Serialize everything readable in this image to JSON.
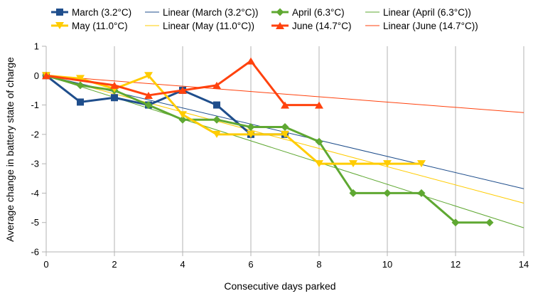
{
  "chart_data": {
    "type": "line",
    "title": "",
    "xlabel": "Consecutive days parked",
    "ylabel": "Average change in battery state of charge",
    "xlim": [
      0,
      14
    ],
    "ylim": [
      -6,
      1
    ],
    "x_ticks": [
      "0",
      "2",
      "4",
      "6",
      "8",
      "10",
      "12",
      "14"
    ],
    "y_ticks": [
      "1",
      "0",
      "-1",
      "-2",
      "-3",
      "-4",
      "-5",
      "-6"
    ],
    "grid": "vertical",
    "legend_position": "top",
    "series": [
      {
        "name": "March (3.2°C)",
        "color": "#1f4e8c",
        "marker": "square",
        "points": [
          [
            0,
            0
          ],
          [
            1,
            -0.9
          ],
          [
            2,
            -0.75
          ],
          [
            3,
            -1
          ],
          [
            4,
            -0.5
          ],
          [
            5,
            -1
          ],
          [
            6,
            -2
          ],
          [
            7,
            -2
          ]
        ]
      },
      {
        "name": "April (6.3°C)",
        "color": "#5fa832",
        "marker": "diamond",
        "points": [
          [
            0,
            0
          ],
          [
            1,
            -0.33
          ],
          [
            2,
            -0.5
          ],
          [
            3,
            -1
          ],
          [
            4,
            -1.5
          ],
          [
            5,
            -1.5
          ],
          [
            6,
            -1.75
          ],
          [
            7,
            -1.75
          ],
          [
            8,
            -2.25
          ],
          [
            9,
            -4
          ],
          [
            10,
            -4
          ],
          [
            11,
            -4
          ],
          [
            12,
            -5
          ],
          [
            13,
            -5
          ]
        ]
      },
      {
        "name": "May (11.0°C)",
        "color": "#ffcc00",
        "marker": "triangle-down",
        "points": [
          [
            0,
            0
          ],
          [
            1,
            -0.1
          ],
          [
            2,
            -0.45
          ],
          [
            3,
            0
          ],
          [
            4,
            -1.33
          ],
          [
            5,
            -2
          ],
          [
            6,
            -2
          ],
          [
            7,
            -2
          ],
          [
            8,
            -3
          ],
          [
            9,
            -3
          ],
          [
            10,
            -3
          ],
          [
            11,
            -3
          ]
        ]
      },
      {
        "name": "June (14.7°C)",
        "color": "#ff420e",
        "marker": "triangle-up",
        "points": [
          [
            0,
            0
          ],
          [
            2,
            -0.33
          ],
          [
            3,
            -0.67
          ],
          [
            4,
            -0.5
          ],
          [
            5,
            -0.33
          ],
          [
            6,
            0.5
          ],
          [
            7,
            -1
          ],
          [
            8,
            -1
          ]
        ]
      }
    ],
    "trendlines": [
      {
        "name": "Linear (March (3.2°C))",
        "color": "#1f4e8c",
        "slope": -0.275,
        "intercept": 0
      },
      {
        "name": "Linear (April (6.3°C))",
        "color": "#5fa832",
        "slope": -0.37,
        "intercept": 0
      },
      {
        "name": "Linear (May (11.0°C))",
        "color": "#ffcc00",
        "slope": -0.31,
        "intercept": 0
      },
      {
        "name": "Linear (June (14.7°C))",
        "color": "#ff420e",
        "slope": -0.09,
        "intercept": 0
      }
    ],
    "legend": [
      {
        "label": "March (3.2°C)",
        "kind": "series",
        "ref": 0
      },
      {
        "label": "Linear (March (3.2°C))",
        "kind": "trend",
        "ref": 0
      },
      {
        "label": "April (6.3°C)",
        "kind": "series",
        "ref": 1
      },
      {
        "label": "Linear (April (6.3°C))",
        "kind": "trend",
        "ref": 1
      },
      {
        "label": "May (11.0°C)",
        "kind": "series",
        "ref": 2
      },
      {
        "label": "Linear (May (11.0°C))",
        "kind": "trend",
        "ref": 2
      },
      {
        "label": "June (14.7°C)",
        "kind": "series",
        "ref": 3
      },
      {
        "label": "Linear (June (14.7°C))",
        "kind": "trend",
        "ref": 3
      }
    ]
  }
}
